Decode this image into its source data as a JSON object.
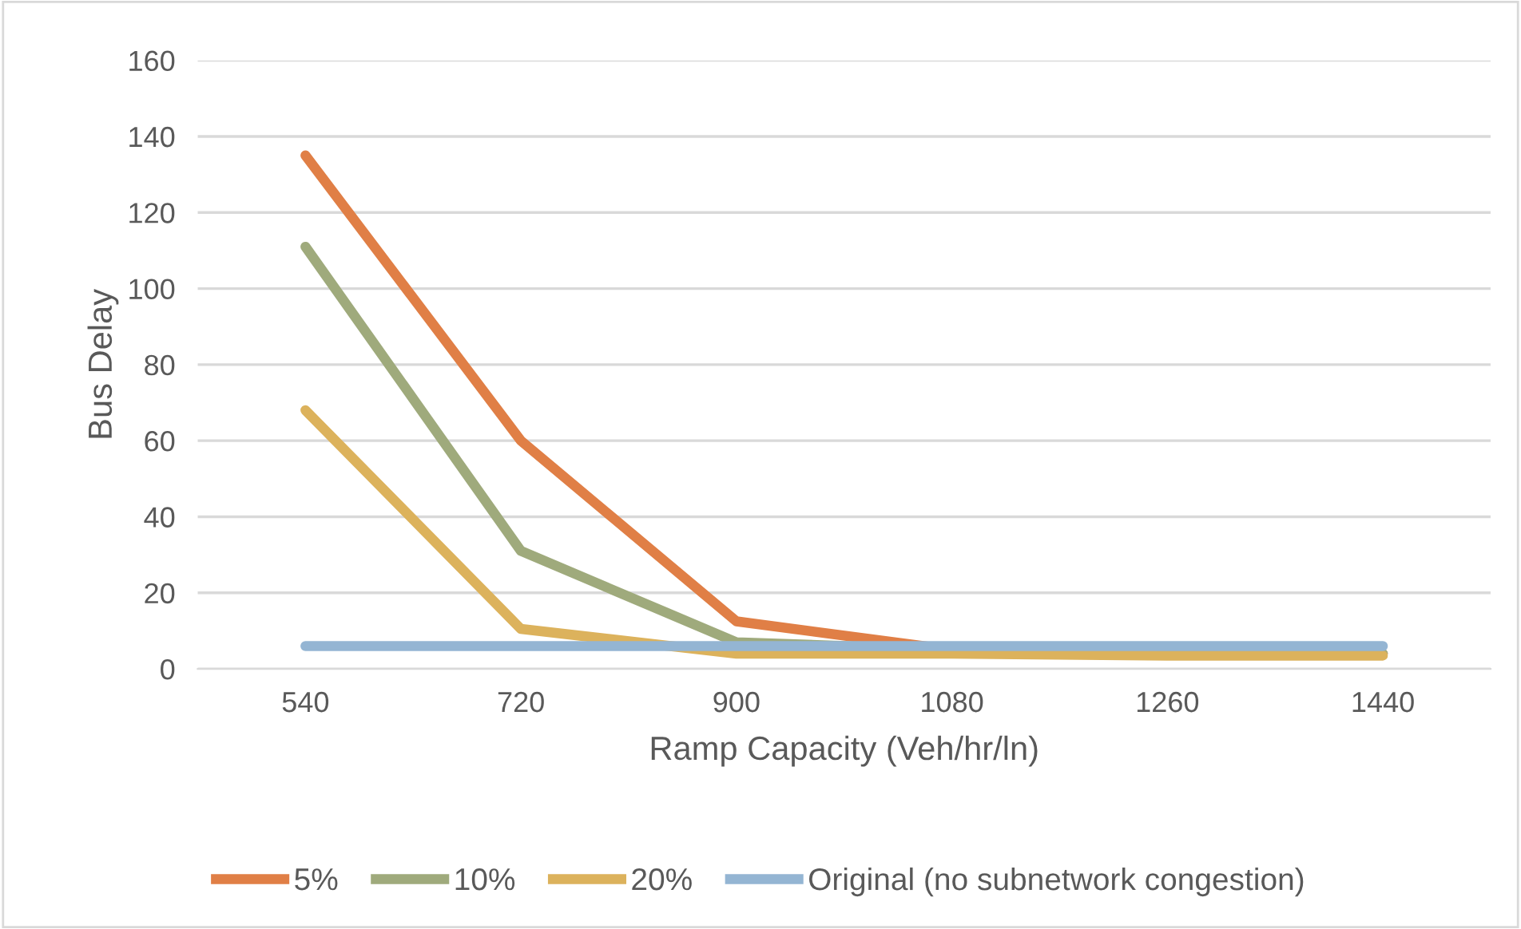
{
  "chart_data": {
    "type": "line",
    "xlabel": "Ramp Capacity (Veh/hr/ln)",
    "ylabel": "Bus Delay",
    "categories": [
      "540",
      "720",
      "900",
      "1080",
      "1260",
      "1440"
    ],
    "series": [
      {
        "name": "5%",
        "color": "#e07f46",
        "values": [
          135,
          60,
          12.5,
          5,
          4.5,
          4
        ]
      },
      {
        "name": "10%",
        "color": "#9faa7c",
        "values": [
          111,
          31,
          7,
          5,
          4.5,
          4
        ]
      },
      {
        "name": "20%",
        "color": "#dcb25c",
        "values": [
          68,
          10.5,
          4,
          4,
          3.5,
          3.5
        ]
      },
      {
        "name": "Original (no subnetwork congestion)",
        "color": "#94b5d3",
        "values": [
          6,
          6,
          6,
          6,
          6,
          6
        ]
      }
    ],
    "ylim": [
      0,
      160
    ],
    "yticks": [
      0,
      20,
      40,
      60,
      80,
      100,
      120,
      140,
      160
    ],
    "grid": "y",
    "legend": "bottom",
    "marker": "none",
    "line_style": "solid"
  }
}
